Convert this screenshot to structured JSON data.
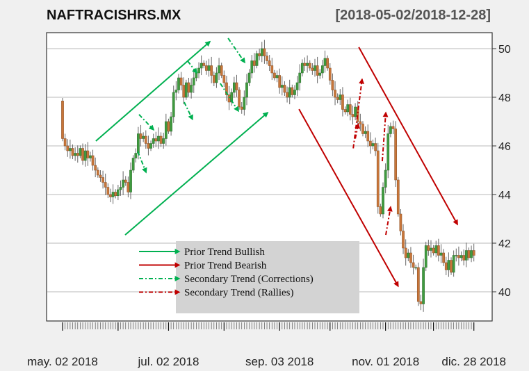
{
  "chart_data": {
    "type": "candlestick",
    "title": "NAFTRACISHRS.MX",
    "date_range": "[2018-05-02/2018-12-28]",
    "ylim": [
      39.0,
      50.7
    ],
    "y_ticks": [
      40,
      42,
      44,
      46,
      48,
      50
    ],
    "x_labels": [
      {
        "index": 0,
        "label": "may. 02 2018"
      },
      {
        "index": 42,
        "label": "jul. 02 2018"
      },
      {
        "index": 86,
        "label": "sep. 03 2018"
      },
      {
        "index": 128,
        "label": "nov. 01 2018"
      },
      {
        "index": 163,
        "label": "dic. 28 2018"
      }
    ],
    "major_tick_indices": [
      0,
      22,
      42,
      64,
      86,
      106,
      128,
      147,
      163
    ],
    "grid": true,
    "first_open": 47.85,
    "closes": [
      46.3,
      46.0,
      45.8,
      45.9,
      45.6,
      45.7,
      45.6,
      45.9,
      45.4,
      45.8,
      45.5,
      45.6,
      45.2,
      45.0,
      44.8,
      44.7,
      44.5,
      44.3,
      44.0,
      43.9,
      44.1,
      43.95,
      44.2,
      44.3,
      44.6,
      44.5,
      44.1,
      45.0,
      45.5,
      45.7,
      46.5,
      46.3,
      46.4,
      46.1,
      45.9,
      46.1,
      46.3,
      46.2,
      46.4,
      46.1,
      46.3,
      47.0,
      46.6,
      47.2,
      48.2,
      48.3,
      48.8,
      48.5,
      48.0,
      48.6,
      48.2,
      48.5,
      48.8,
      49.0,
      49.2,
      49.4,
      49.3,
      49.1,
      49.3,
      48.9,
      48.6,
      49.0,
      49.3,
      48.9,
      48.6,
      48.1,
      47.8,
      48.2,
      48.6,
      48.3,
      47.6,
      47.5,
      48.0,
      48.6,
      49.0,
      49.5,
      49.3,
      49.8,
      49.7,
      50.0,
      49.7,
      49.5,
      49.3,
      49.0,
      48.8,
      48.9,
      48.4,
      48.5,
      48.2,
      48.0,
      48.4,
      48.1,
      48.3,
      48.6,
      49.0,
      49.4,
      49.3,
      49.4,
      49.2,
      49.1,
      49.3,
      48.9,
      49.0,
      49.3,
      49.6,
      49.2,
      48.7,
      48.3,
      48.0,
      47.9,
      48.1,
      47.5,
      47.4,
      47.7,
      47.3,
      47.2,
      47.6,
      47.0,
      46.9,
      46.5,
      46.6,
      46.2,
      46.0,
      46.1,
      45.8,
      43.5,
      43.2,
      44.3,
      45.0,
      46.5,
      46.8,
      46.7,
      44.6,
      43.2,
      42.5,
      41.8,
      41.4,
      41.6,
      41.2,
      41.0,
      41.0,
      39.6,
      39.5,
      41.0,
      41.9,
      41.7,
      41.8,
      41.6,
      41.9,
      41.5,
      41.6,
      41.2,
      40.9,
      41.3,
      40.8,
      41.5,
      41.5,
      41.4,
      41.5,
      41.3,
      41.7,
      41.4,
      41.7,
      41.5
    ],
    "colors": {
      "up": "#3f9b3f",
      "down": "#c8763a",
      "bullish": "#00b050",
      "bearish": "#c00000"
    },
    "annotations": [
      {
        "kind": "bullish",
        "style": "solid",
        "from": [
          13.2,
          46.2
        ],
        "to": [
          58.4,
          50.29
        ]
      },
      {
        "kind": "bullish",
        "style": "solid",
        "from": [
          24.8,
          42.34
        ],
        "to": [
          81.3,
          47.37
        ]
      },
      {
        "kind": "bullish",
        "style": "dashdot",
        "from": [
          30.3,
          47.29
        ],
        "to": [
          36.1,
          46.66
        ]
      },
      {
        "kind": "bullish",
        "style": "dashdot",
        "from": [
          29.8,
          45.77
        ],
        "to": [
          33.1,
          44.91
        ]
      },
      {
        "kind": "bullish",
        "style": "dashdot",
        "from": [
          49.6,
          49.49
        ],
        "to": [
          53.2,
          49.0
        ]
      },
      {
        "kind": "bullish",
        "style": "dashdot",
        "from": [
          48.2,
          47.8
        ],
        "to": [
          51.5,
          47.09
        ]
      },
      {
        "kind": "bullish",
        "style": "dashdot",
        "from": [
          65.6,
          50.43
        ],
        "to": [
          72.2,
          49.43
        ]
      },
      {
        "kind": "bullish",
        "style": "dashdot",
        "from": [
          62.5,
          48.57
        ],
        "to": [
          69.7,
          47.43
        ]
      },
      {
        "kind": "bearish",
        "style": "solid",
        "from": [
          93.7,
          47.51
        ],
        "to": [
          133.0,
          40.23
        ]
      },
      {
        "kind": "bearish",
        "style": "solid",
        "from": [
          117.4,
          50.06
        ],
        "to": [
          156.5,
          42.77
        ]
      },
      {
        "kind": "bearish",
        "style": "dashdot",
        "from": [
          115.2,
          45.9
        ],
        "to": [
          118.7,
          48.74
        ]
      },
      {
        "kind": "bearish",
        "style": "dashdot",
        "from": [
          116.0,
          46.3
        ],
        "to": [
          117.2,
          46.9
        ]
      },
      {
        "kind": "bearish",
        "style": "dashdot",
        "from": [
          126.7,
          45.37
        ],
        "to": [
          128.1,
          47.37
        ]
      },
      {
        "kind": "bearish",
        "style": "dashdot",
        "from": [
          128.1,
          42.34
        ],
        "to": [
          130.0,
          43.49
        ]
      }
    ],
    "legend": {
      "placement": "bottom-center",
      "entries": [
        {
          "label": "Prior Trend Bullish",
          "kind": "bullish",
          "style": "solid"
        },
        {
          "label": "Prior Trend Bearish",
          "kind": "bearish",
          "style": "solid"
        },
        {
          "label": "Secondary Trend (Corrections)",
          "kind": "bullish",
          "style": "dashdot"
        },
        {
          "label": "Secondary Trend (Rallies)",
          "kind": "bearish",
          "style": "dashdot"
        }
      ]
    }
  }
}
